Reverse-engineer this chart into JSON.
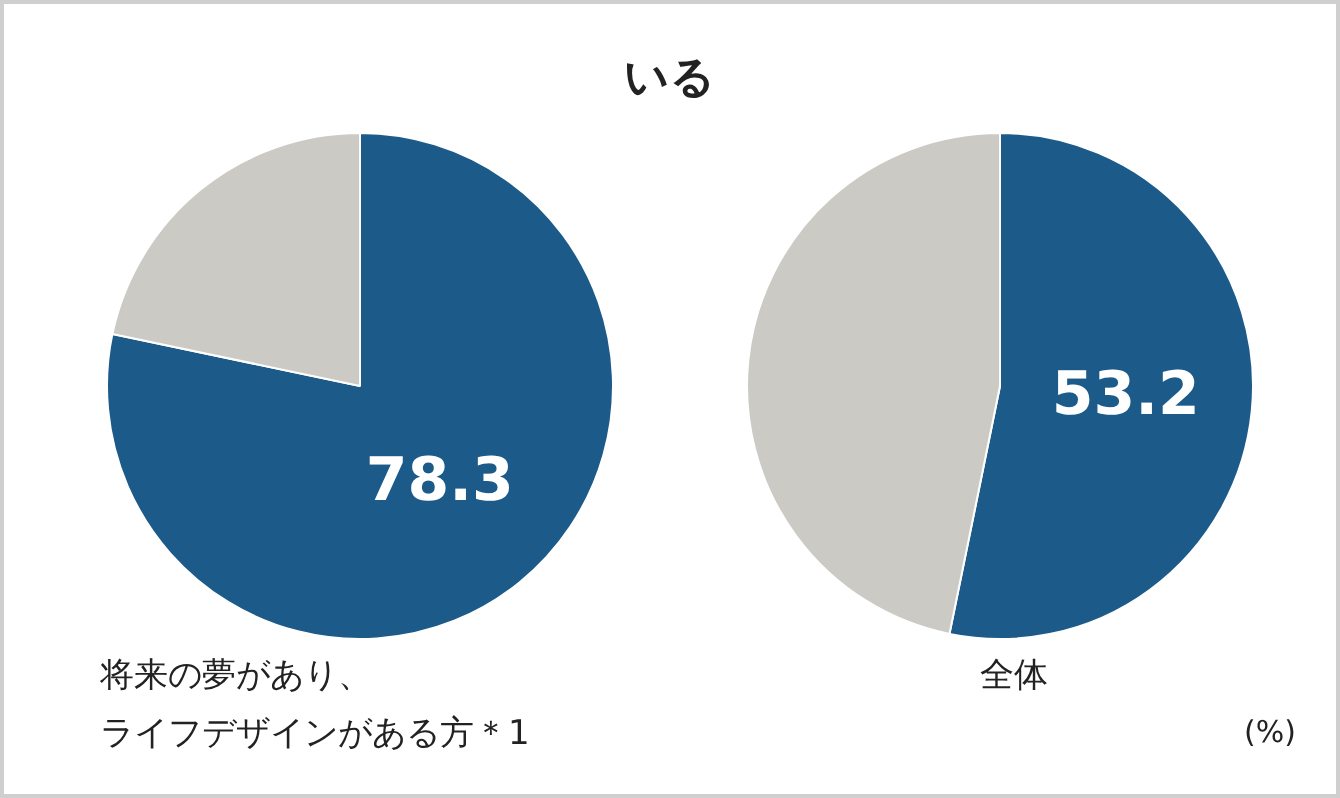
{
  "chart_data": [
    {
      "type": "pie",
      "title": "いる",
      "categories": [
        null,
        null
      ],
      "values": [
        78.3,
        21.7
      ],
      "colors": [
        "#1b5a89",
        "#cbcac5"
      ],
      "value_labels": [
        "78.3",
        null
      ],
      "xlabel": "将来の夢があり、ライフデザインがある方＊1"
    },
    {
      "type": "pie",
      "categories": [
        null,
        null
      ],
      "values": [
        53.2,
        46.8
      ],
      "colors": [
        "#1b5a89",
        "#cbcac5"
      ],
      "value_labels": [
        "53.2",
        null
      ],
      "xlabel": "全体",
      "annotations": [
        "(%)"
      ]
    }
  ]
}
